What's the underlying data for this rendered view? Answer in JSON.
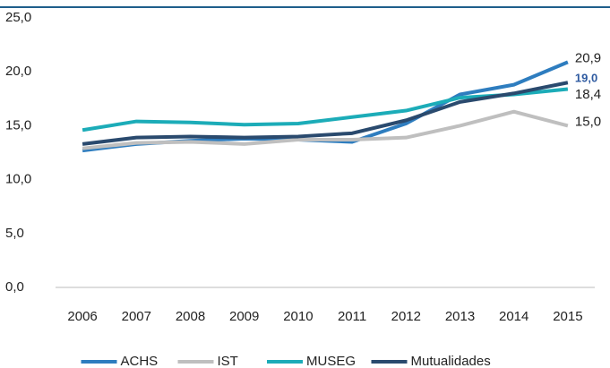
{
  "chart_data": {
    "type": "line",
    "categories": [
      "2006",
      "2007",
      "2008",
      "2009",
      "2010",
      "2011",
      "2012",
      "2013",
      "2014",
      "2015"
    ],
    "series": [
      {
        "name": "ACHS",
        "color": "#2e7dbf",
        "values": [
          12.7,
          13.3,
          13.6,
          13.8,
          13.7,
          13.5,
          15.2,
          17.9,
          18.8,
          20.9
        ],
        "value_labels": [
          null,
          null,
          null,
          null,
          null,
          null,
          null,
          null,
          null,
          "20,9"
        ]
      },
      {
        "name": "IST",
        "color": "#bfbfbf",
        "values": [
          12.9,
          13.4,
          13.5,
          13.3,
          13.7,
          13.7,
          13.9,
          15.0,
          16.3,
          15.0
        ],
        "value_labels": [
          null,
          null,
          null,
          null,
          null,
          null,
          null,
          null,
          null,
          "15,0"
        ]
      },
      {
        "name": "MUSEG",
        "color": "#1cacb8",
        "values": [
          14.6,
          15.4,
          15.3,
          15.1,
          15.2,
          15.8,
          16.4,
          17.6,
          17.9,
          18.4
        ],
        "value_labels": [
          null,
          null,
          null,
          null,
          null,
          null,
          null,
          null,
          null,
          "18,4"
        ]
      },
      {
        "name": "Mutualidades",
        "color": "#2a4a6e",
        "values": [
          13.3,
          13.9,
          14.0,
          13.9,
          14.0,
          14.3,
          15.5,
          17.2,
          18.0,
          19.0
        ],
        "value_labels": [
          null,
          null,
          null,
          null,
          null,
          null,
          null,
          null,
          null,
          "19,0"
        ]
      }
    ],
    "ylim": [
      0,
      25
    ],
    "yticks": [
      {
        "value": 0,
        "label": "0,0"
      },
      {
        "value": 5,
        "label": "5,0"
      },
      {
        "value": 10,
        "label": "10,0"
      },
      {
        "value": 15,
        "label": "15,0"
      },
      {
        "value": 20,
        "label": "20,0"
      },
      {
        "value": 25,
        "label": "25,0"
      }
    ],
    "legend": "bottom"
  }
}
